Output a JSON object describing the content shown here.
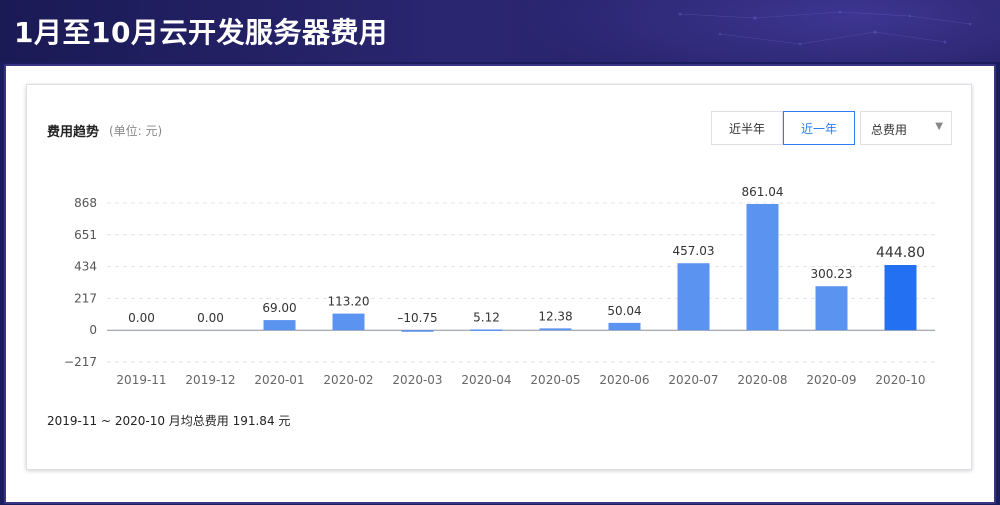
{
  "page": {
    "title": "1月至10月云开发服务器费用"
  },
  "card": {
    "title": "费用趋势",
    "unit": "(单位: 元)",
    "buttons": {
      "half_year": "近半年",
      "one_year": "近一年"
    },
    "select": {
      "value": "总费用"
    },
    "footnote": "2019-11 ~ 2020-10 月均总费用 191.84 元"
  },
  "colors": {
    "bar": "#5b93f1",
    "bar_highlight": "#2470f2",
    "grid": "#dfe3ea",
    "accent": "#2d7cf6"
  },
  "chart_data": {
    "type": "bar",
    "categories": [
      "2019-11",
      "2019-12",
      "2020-01",
      "2020-02",
      "2020-03",
      "2020-04",
      "2020-05",
      "2020-06",
      "2020-07",
      "2020-08",
      "2020-09",
      "2020-10"
    ],
    "values": [
      0.0,
      0.0,
      69.0,
      113.2,
      -10.75,
      5.12,
      12.38,
      50.04,
      457.03,
      861.04,
      300.23,
      444.8
    ],
    "value_labels": [
      "0.00",
      "0.00",
      "69.00",
      "113.20",
      "–10.75",
      "5.12",
      "12.38",
      "50.04",
      "457.03",
      "861.04",
      "300.23",
      "444.80"
    ],
    "yticks": [
      868,
      651,
      434,
      217,
      0,
      -217
    ],
    "ytick_labels": [
      "868",
      "651",
      "434",
      "217",
      "0",
      "−217"
    ],
    "ylim": [
      -217,
      868
    ],
    "highlight_index": 11,
    "grid": true
  }
}
